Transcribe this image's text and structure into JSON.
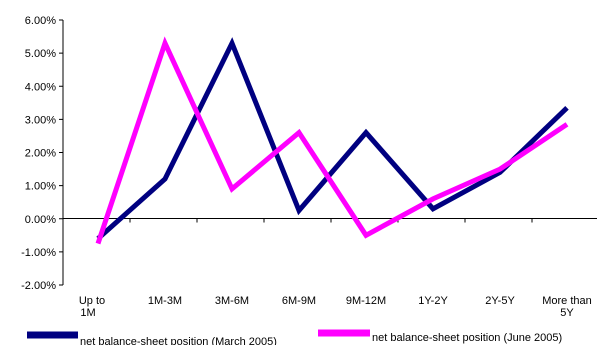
{
  "chart_data": {
    "type": "line",
    "title": "",
    "xlabel": "",
    "ylabel": "",
    "categories": [
      "Up to 1M",
      "1M-3M",
      "3M-6M",
      "6M-9M",
      "9M-12M",
      "1Y-2Y",
      "2Y-5Y",
      "More than 5Y"
    ],
    "yticks": [
      "6.00%",
      "5.00%",
      "4.00%",
      "3.00%",
      "2.00%",
      "1.00%",
      "0.00%",
      "-1.00%",
      "-2.00%"
    ],
    "ylim": [
      -2,
      6
    ],
    "y_unit": "%",
    "grid": false,
    "legend_position": "bottom",
    "series": [
      {
        "name": "net balance-sheet position (March 2005)",
        "color": "#000080",
        "values": [
          -0.6,
          1.2,
          5.3,
          0.25,
          2.6,
          0.3,
          1.4,
          3.35
        ]
      },
      {
        "name": "net balance-sheet position (June 2005)",
        "color": "#ff00ff",
        "values": [
          -0.75,
          5.3,
          0.9,
          2.6,
          -0.5,
          0.6,
          1.5,
          2.85
        ]
      }
    ]
  }
}
